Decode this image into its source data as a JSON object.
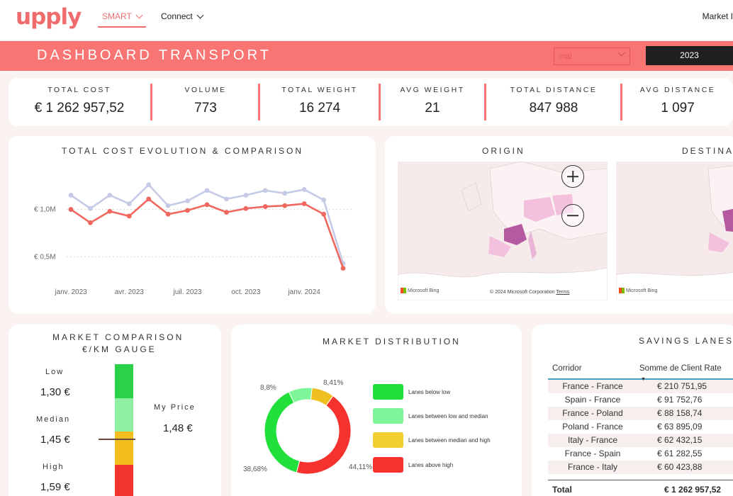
{
  "nav": {
    "logo": "upply",
    "items": [
      {
        "label": "SMART"
      },
      {
        "label": "Connect"
      }
    ],
    "right_label": "Market I"
  },
  "banner": {
    "title": "DASHBOARD TRANSPORT",
    "month_select": "mai",
    "year_button": "2023"
  },
  "kpis": [
    {
      "label": "TOTAL COST",
      "value": "€ 1 262 957,52"
    },
    {
      "label": "VOLUME",
      "value": "773"
    },
    {
      "label": "TOTAL WEIGHT",
      "value": "16 274"
    },
    {
      "label": "AVG WEIGHT",
      "value": "21"
    },
    {
      "label": "TOTAL DISTANCE",
      "value": "847 988"
    },
    {
      "label": "AVG DISTANCE",
      "value": "1 097"
    }
  ],
  "cost_chart": {
    "title": "TOTAL COST EVOLUTION & COMPARISON"
  },
  "maps": {
    "origin_title": "ORIGIN",
    "destination_title": "DESTINA",
    "bing": "Microsoft Bing",
    "copyright": "© 2024 Microsoft Corporation",
    "terms": "Terms"
  },
  "gauge": {
    "title_line1": "MARKET COMPARISON",
    "title_line2": "€/KM GAUGE",
    "low_label": "Low",
    "low_value": "1,30 €",
    "median_label": "Median",
    "median_value": "1,45 €",
    "high_label": "High",
    "high_value": "1,59 €",
    "my_price_label": "My Price",
    "my_price_value": "1,48 €",
    "marker_position": 1.48
  },
  "distribution": {
    "title": "MARKET DISTRIBUTION"
  },
  "savings": {
    "title": "SAVINGS LANES",
    "col_corridor": "Corridor",
    "col_rate": "Somme de Client Rate",
    "rows": [
      {
        "corridor": "France - France",
        "rate": "€ 210 751,95"
      },
      {
        "corridor": "Spain - France",
        "rate": "€ 91 752,76"
      },
      {
        "corridor": "France - Poland",
        "rate": "€ 88 158,74"
      },
      {
        "corridor": "Poland - France",
        "rate": "€ 63 895,09"
      },
      {
        "corridor": "Italy - France",
        "rate": "€ 62 432,15"
      },
      {
        "corridor": "France - Spain",
        "rate": "€ 61 282,55"
      },
      {
        "corridor": "France - Italy",
        "rate": "€ 60 423,88"
      }
    ],
    "total_label": "Total",
    "total_value": "€ 1 262 957,52"
  },
  "chart_data": [
    {
      "type": "line",
      "title": "TOTAL COST EVOLUTION & COMPARISON",
      "x": [
        "2023-01",
        "2023-02",
        "2023-03",
        "2023-04",
        "2023-05",
        "2023-06",
        "2023-07",
        "2023-08",
        "2023-09",
        "2023-10",
        "2023-11",
        "2023-12",
        "2024-01",
        "2024-02",
        "2024-03"
      ],
      "x_tick_labels": [
        "janv. 2023",
        "avr. 2023",
        "juil. 2023",
        "oct. 2023",
        "janv. 2024"
      ],
      "y_tick_labels": [
        "€ 0,5M",
        "€ 1,0M"
      ],
      "y_ticks": [
        500000,
        1000000
      ],
      "ylim": [
        280000,
        1400000
      ],
      "grid": true,
      "series": [
        {
          "color": "#c5cbe6",
          "values": [
            1150000,
            1010000,
            1150000,
            1060000,
            1260000,
            1040000,
            1090000,
            1200000,
            1110000,
            1150000,
            1200000,
            1170000,
            1210000,
            1100000,
            430000
          ]
        },
        {
          "color": "#f0675f",
          "values": [
            1000000,
            860000,
            980000,
            930000,
            1110000,
            950000,
            990000,
            1050000,
            970000,
            1010000,
            1030000,
            1040000,
            1060000,
            950000,
            380000
          ]
        }
      ]
    },
    {
      "type": "pie",
      "title": "MARKET DISTRIBUTION",
      "labels": [
        "Lanes below low",
        "Lanes between low and median",
        "Lanes between median and high",
        "Lanes above high"
      ],
      "values": [
        38.68,
        8.8,
        8.41,
        44.11
      ],
      "value_labels": [
        "38,68%",
        "8,8%",
        "8,41%",
        "44,11%"
      ],
      "colors": [
        "#22e03c",
        "#7ff59a",
        "#f0c020",
        "#f5322e"
      ]
    }
  ]
}
